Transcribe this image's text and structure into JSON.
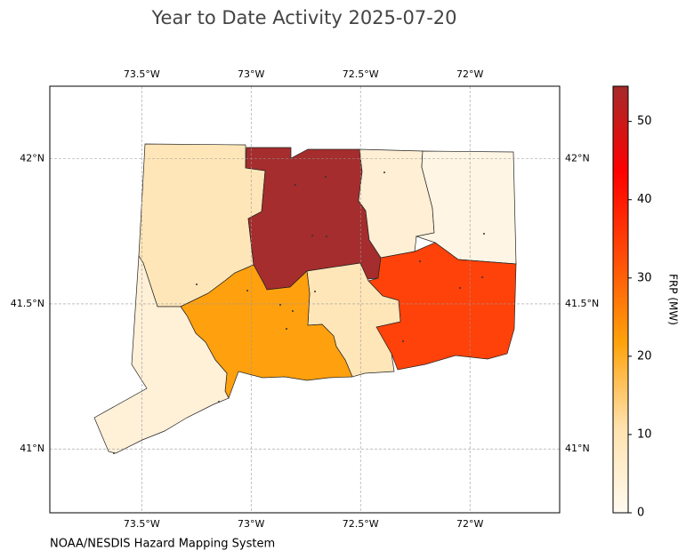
{
  "chart_data": {
    "type": "choropleth",
    "title": "Year to Date Activity 2025-07-20",
    "source": "NOAA/NESDIS Hazard Mapping System",
    "xlim": [
      -73.92,
      -71.59
    ],
    "ylim": [
      40.78,
      42.25
    ],
    "xticks": [
      {
        "value": -73.5,
        "label": "73.5°W"
      },
      {
        "value": -73,
        "label": "73°W"
      },
      {
        "value": -72.5,
        "label": "72.5°W"
      },
      {
        "value": -72,
        "label": "72°W"
      }
    ],
    "yticks": [
      {
        "value": 41,
        "label": "41°N"
      },
      {
        "value": 41.5,
        "label": "41.5°N"
      },
      {
        "value": 42,
        "label": "42°N"
      }
    ],
    "grid": true,
    "values": [
      8,
      54,
      5,
      2,
      33,
      8,
      20,
      4
    ],
    "colors": [
      "#ffe6b8",
      "#a52d2d",
      "#ffefd4",
      "#fff5e4",
      "#ff420a",
      "#ffe6b8",
      "#ffa00e",
      "#fff0d8"
    ],
    "colorbar": {
      "label": "FRP (MW)",
      "lim": [
        0,
        54.5
      ],
      "ticks": [
        0,
        10,
        20,
        30,
        40,
        50
      ],
      "colors": [
        "#fffaf0",
        "#ffe2ae",
        "#ffa20a",
        "#ff4c08",
        "#ff0000",
        "#a52a2a"
      ]
    }
  }
}
